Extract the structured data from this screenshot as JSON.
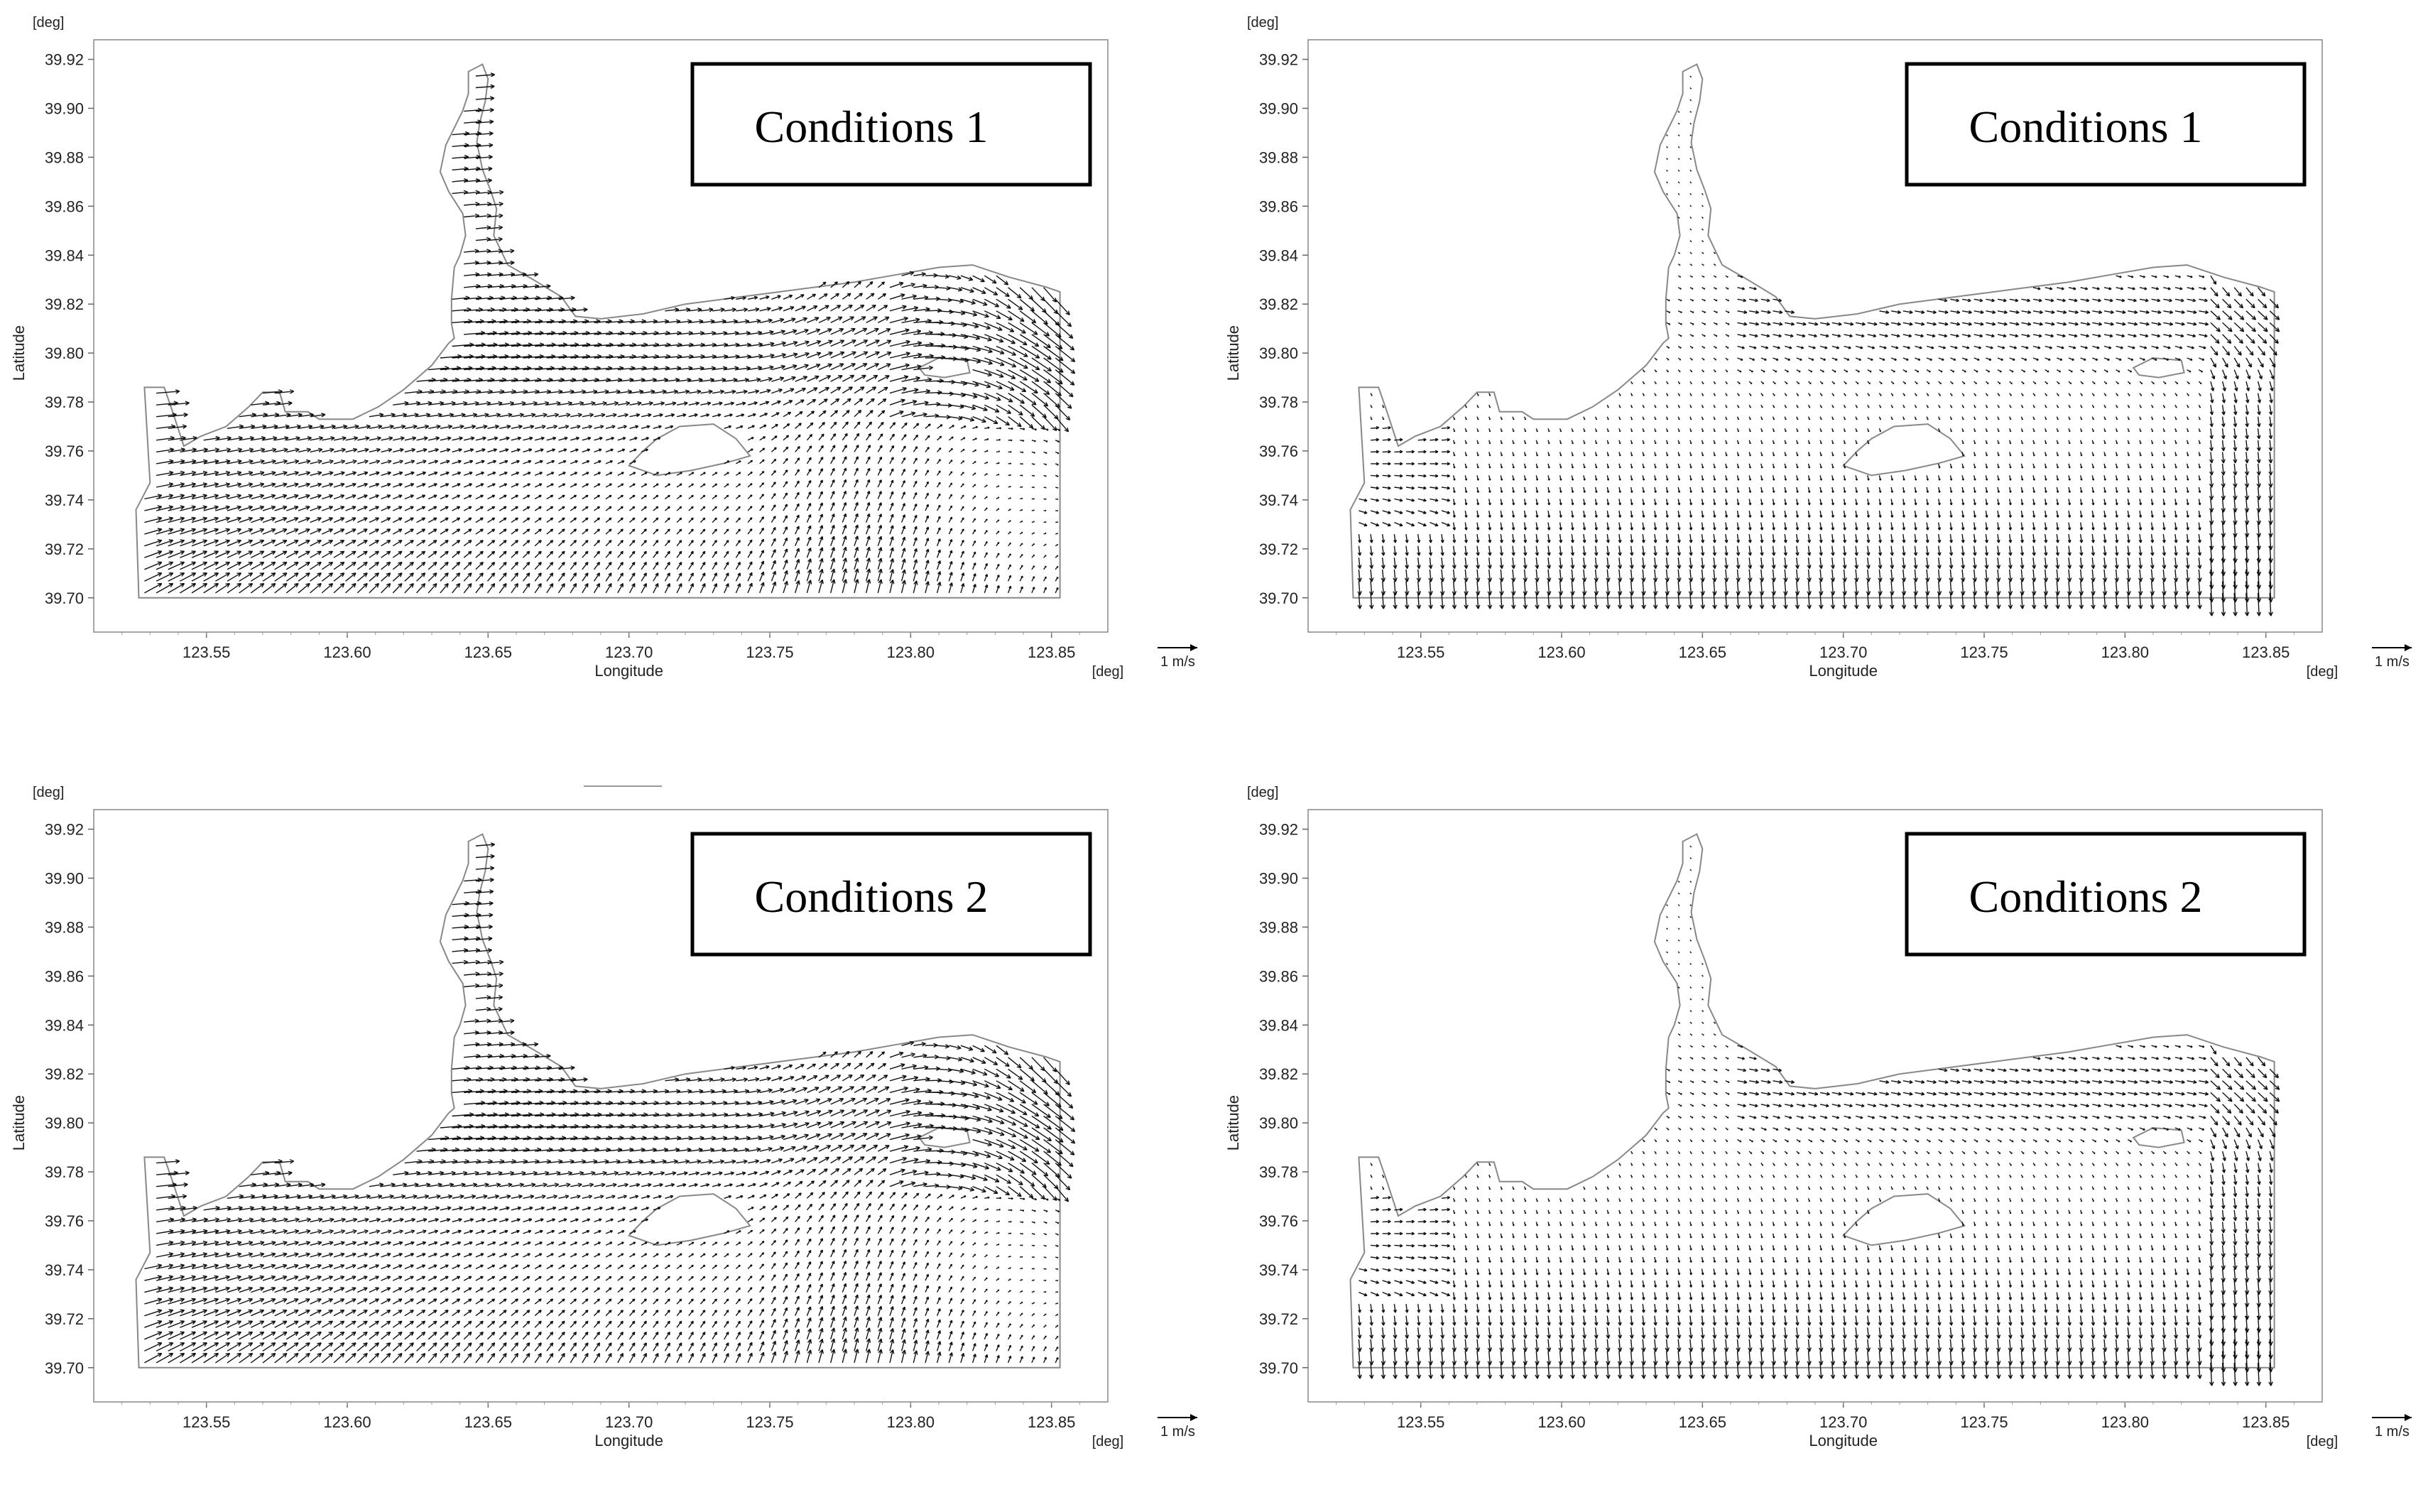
{
  "figure": {
    "panels": [
      {
        "condition_label": "Conditions 1",
        "variant": "a"
      },
      {
        "condition_label": "Conditions 1",
        "variant": "b"
      },
      {
        "condition_label": "Conditions 2",
        "variant": "a"
      },
      {
        "condition_label": "Conditions 2",
        "variant": "b"
      }
    ]
  },
  "chart_data": [
    {
      "type": "vector-field",
      "title": "Conditions 1",
      "xlabel": "Longitude",
      "ylabel": "Latitude",
      "x_unit": "[deg]",
      "y_unit": "[deg]",
      "xlim": [
        123.51,
        123.87
      ],
      "ylim": [
        39.686,
        39.928
      ],
      "x_ticks": [
        "123.55",
        "123.60",
        "123.65",
        "123.70",
        "123.75",
        "123.80",
        "123.85"
      ],
      "y_ticks": [
        "39.70",
        "39.72",
        "39.74",
        "39.76",
        "39.78",
        "39.80",
        "39.82",
        "39.84",
        "39.86",
        "39.88",
        "39.90",
        "39.92"
      ],
      "scale_label": "1 m/s",
      "field": "strong current along the outer boundary, eastward flow in the west, northward flow in the southwest",
      "grid": false
    },
    {
      "type": "vector-field",
      "title": "Conditions 1",
      "xlabel": "Longitude",
      "ylabel": "Latitude",
      "x_unit": "[deg]",
      "y_unit": "[deg]",
      "xlim": [
        123.51,
        123.87
      ],
      "ylim": [
        39.686,
        39.928
      ],
      "x_ticks": [
        "123.55",
        "123.60",
        "123.65",
        "123.70",
        "123.75",
        "123.80",
        "123.85"
      ],
      "y_ticks": [
        "39.70",
        "39.72",
        "39.74",
        "39.76",
        "39.78",
        "39.80",
        "39.82",
        "39.84",
        "39.86",
        "39.88",
        "39.90",
        "39.92"
      ],
      "scale_label": "1 m/s",
      "field": "southward flow across the southern boundary, eastward flow along the northern coast",
      "grid": false
    },
    {
      "type": "vector-field",
      "title": "Conditions 2",
      "xlabel": "Longitude",
      "ylabel": "Latitude",
      "x_unit": "[deg]",
      "y_unit": "[deg]",
      "xlim": [
        123.51,
        123.87
      ],
      "ylim": [
        39.686,
        39.928
      ],
      "x_ticks": [
        "123.55",
        "123.60",
        "123.65",
        "123.70",
        "123.75",
        "123.80",
        "123.85"
      ],
      "y_ticks": [
        "39.70",
        "39.72",
        "39.74",
        "39.76",
        "39.78",
        "39.80",
        "39.82",
        "39.84",
        "39.86",
        "39.88",
        "39.90",
        "39.92"
      ],
      "scale_label": "1 m/s",
      "field": "strong current along the outer boundary, eastward flow in the west, northward flow in the southwest",
      "grid": false
    },
    {
      "type": "vector-field",
      "title": "Conditions 2",
      "xlabel": "Longitude",
      "ylabel": "Latitude",
      "x_unit": "[deg]",
      "y_unit": "[deg]",
      "xlim": [
        123.51,
        123.87
      ],
      "ylim": [
        39.686,
        39.928
      ],
      "x_ticks": [
        "123.55",
        "123.60",
        "123.65",
        "123.70",
        "123.75",
        "123.80",
        "123.85"
      ],
      "y_ticks": [
        "39.70",
        "39.72",
        "39.74",
        "39.76",
        "39.78",
        "39.80",
        "39.82",
        "39.84",
        "39.86",
        "39.88",
        "39.90",
        "39.92"
      ],
      "scale_label": "1 m/s",
      "field": "southward flow across the southern boundary, eastward flow along the northern coast",
      "grid": false
    }
  ]
}
